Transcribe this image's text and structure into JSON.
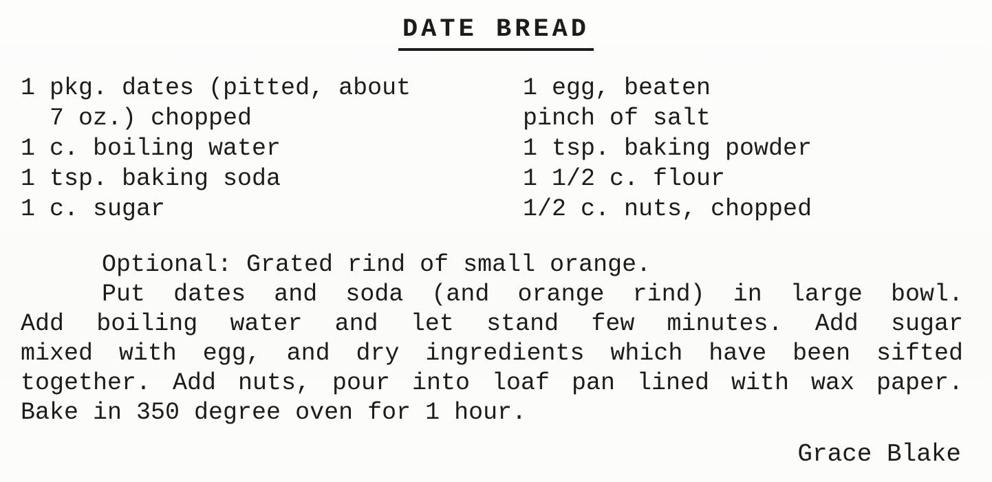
{
  "page": {
    "title": "DATE BREAD",
    "signature": "Grace Blake"
  },
  "ingredients": {
    "left": [
      "1 pkg. dates (pitted, about",
      "7 oz.) chopped",
      "1 c. boiling water",
      "1 tsp. baking soda",
      "1 c. sugar"
    ],
    "right": [
      "1 egg, beaten",
      "pinch of salt",
      "1 tsp. baking powder",
      "1 1/2 c. flour",
      "1/2 c. nuts, chopped"
    ]
  },
  "instructions": {
    "lines": [
      "Optional: Grated rind of small orange.",
      "Put dates and soda (and orange rind) in large bowl.",
      "Add boiling water and let stand few minutes. Add sugar",
      "mixed with egg, and dry ingredients which have been sifted",
      "together. Add nuts, pour into loaf pan lined with wax paper.",
      "Bake in 350 degree oven for 1 hour."
    ]
  }
}
